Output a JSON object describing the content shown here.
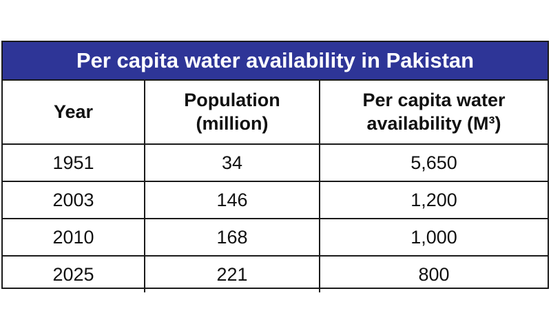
{
  "chart_data": {
    "type": "table",
    "title": "Per capita water availability in Pakistan",
    "columns": [
      {
        "lines": [
          "Year"
        ]
      },
      {
        "lines": [
          "Population",
          "(million)"
        ]
      },
      {
        "lines": [
          "Per capita water",
          "availability (M³)"
        ]
      }
    ],
    "rows": [
      [
        "1951",
        "34",
        "5,650"
      ],
      [
        "2003",
        "146",
        "1,200"
      ],
      [
        "2010",
        "168",
        "1,000"
      ],
      [
        "2025",
        "221",
        "800"
      ]
    ]
  },
  "colors": {
    "title_background": "#2e3597",
    "title_text": "#ffffff",
    "border": "#1a1a1a"
  }
}
